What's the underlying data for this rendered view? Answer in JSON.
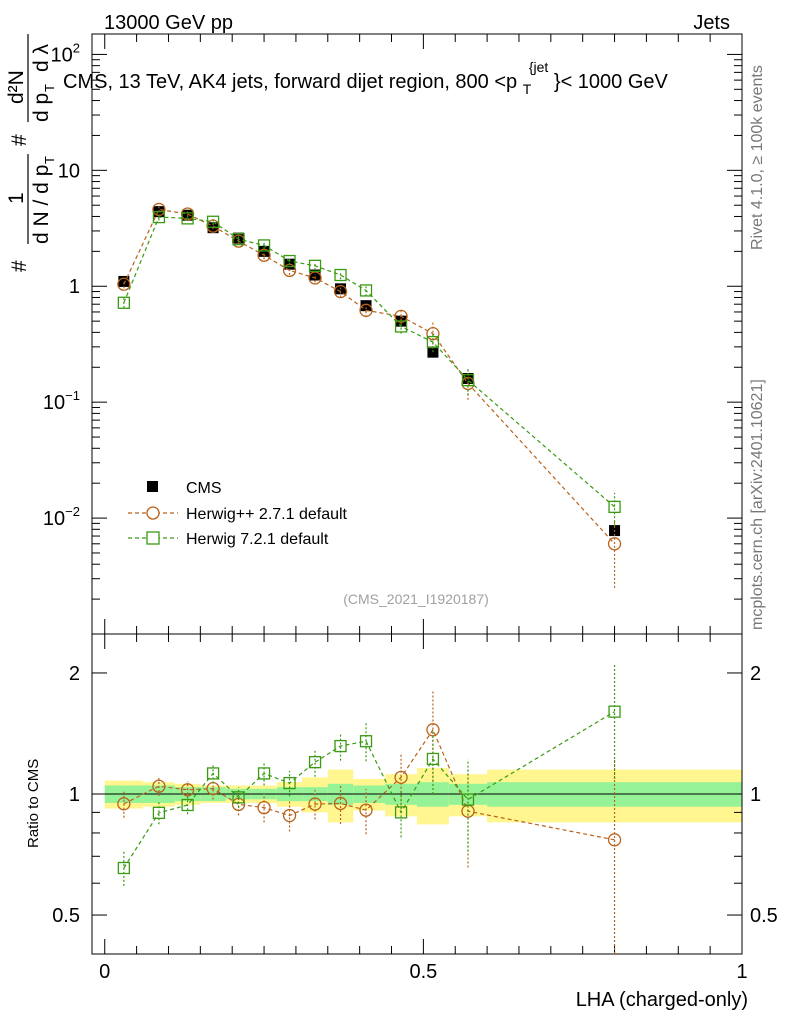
{
  "header": {
    "left": "13000 GeV pp",
    "right": "Jets"
  },
  "side_labels": {
    "rivet": "Rivet 4.1.0, ≥ 100k events",
    "mcplots": "mcplots.cern.ch [arXiv:2401.10621]"
  },
  "chart_data": [
    {
      "type": "scatter",
      "title": "CMS, 13 TeV, AK4 jets, forward dijet region, 800 <p_T^{jet}< 1000 GeV",
      "title_parts": {
        "pre": "CMS, 13 TeV, AK4 jets, forward dijet region, 800 <p",
        "sub": "T",
        "sup": "{jet",
        "post": "}< 1000 GeV"
      },
      "ylabel_parts": {
        "hash1": "#",
        "one": "1",
        "dn_dpt": "d N / d p",
        "t1": "T",
        "hash2": "#",
        "d2n": "d²N",
        "dpt_dl": "d p",
        "t2": "T",
        "dl": "d λ"
      },
      "yscale": "log",
      "ylim": [
        0.001,
        150
      ],
      "xlim": [
        -0.02,
        1.0
      ],
      "y_ticks": [
        {
          "v": 100,
          "base": "10",
          "exp": "2"
        },
        {
          "v": 10,
          "base": "10",
          "exp": ""
        },
        {
          "v": 1,
          "base": "1",
          "exp": ""
        },
        {
          "v": 0.1,
          "base": "10",
          "exp": "−1"
        },
        {
          "v": 0.01,
          "base": "10",
          "exp": "−2"
        }
      ],
      "watermark": "(CMS_2021_I1920187)",
      "legend_position": "lower-left",
      "x": [
        0.03,
        0.085,
        0.13,
        0.17,
        0.21,
        0.25,
        0.29,
        0.33,
        0.37,
        0.41,
        0.465,
        0.515,
        0.57,
        0.8
      ],
      "series": [
        {
          "name": "CMS",
          "color": "#000000",
          "marker": "filled-square",
          "values": [
            1.1,
            4.4,
            4.1,
            3.2,
            2.6,
            2.0,
            1.55,
            1.25,
            0.95,
            0.68,
            0.5,
            0.27,
            0.16,
            0.0078
          ],
          "band_ratio_inner": [
            0.05,
            0.05,
            0.04,
            0.04,
            0.03,
            0.03,
            0.04,
            0.04,
            0.06,
            0.05,
            0.06,
            0.07,
            0.06,
            0.07
          ],
          "band_ratio_outer": [
            0.08,
            0.07,
            0.06,
            0.05,
            0.05,
            0.05,
            0.07,
            0.1,
            0.15,
            0.09,
            0.12,
            0.16,
            0.12,
            0.15
          ]
        },
        {
          "name": "Herwig++ 2.7.1 default",
          "color": "#b8621b",
          "marker": "open-circle",
          "values": [
            1.04,
            4.6,
            4.2,
            3.3,
            2.45,
            1.85,
            1.37,
            1.18,
            0.9,
            0.62,
            0.55,
            0.39,
            0.145,
            0.006
          ],
          "err": [
            0.08,
            0.25,
            0.2,
            0.2,
            0.15,
            0.15,
            0.12,
            0.1,
            0.1,
            0.08,
            0.08,
            0.1,
            0.04,
            0.0035
          ]
        },
        {
          "name": "Herwig 7.2.1 default",
          "color": "#3a9a12",
          "marker": "open-square",
          "values": [
            0.72,
            3.95,
            3.85,
            3.6,
            2.55,
            2.25,
            1.65,
            1.5,
            1.25,
            0.92,
            0.45,
            0.33,
            0.155,
            0.0125
          ],
          "err": [
            0.07,
            0.25,
            0.2,
            0.2,
            0.15,
            0.15,
            0.12,
            0.12,
            0.1,
            0.1,
            0.06,
            0.06,
            0.04,
            0.004
          ]
        }
      ]
    },
    {
      "type": "scatter",
      "ylabel": "Ratio to CMS",
      "xlabel": "LHA (charged-only)",
      "yscale": "log",
      "ylim": [
        0.4,
        2.5
      ],
      "xlim": [
        -0.02,
        1.0
      ],
      "y_ticks": [
        {
          "v": 2,
          "label": "2"
        },
        {
          "v": 1,
          "label": "1"
        },
        {
          "v": 0.5,
          "label": "0.5"
        }
      ],
      "x_ticks": [
        {
          "v": 0,
          "label": "0"
        },
        {
          "v": 0.5,
          "label": "0.5"
        },
        {
          "v": 1,
          "label": "1"
        }
      ],
      "bins": [
        0.0,
        0.06,
        0.11,
        0.15,
        0.19,
        0.23,
        0.27,
        0.31,
        0.35,
        0.39,
        0.44,
        0.49,
        0.54,
        0.6,
        1.0
      ]
    }
  ]
}
